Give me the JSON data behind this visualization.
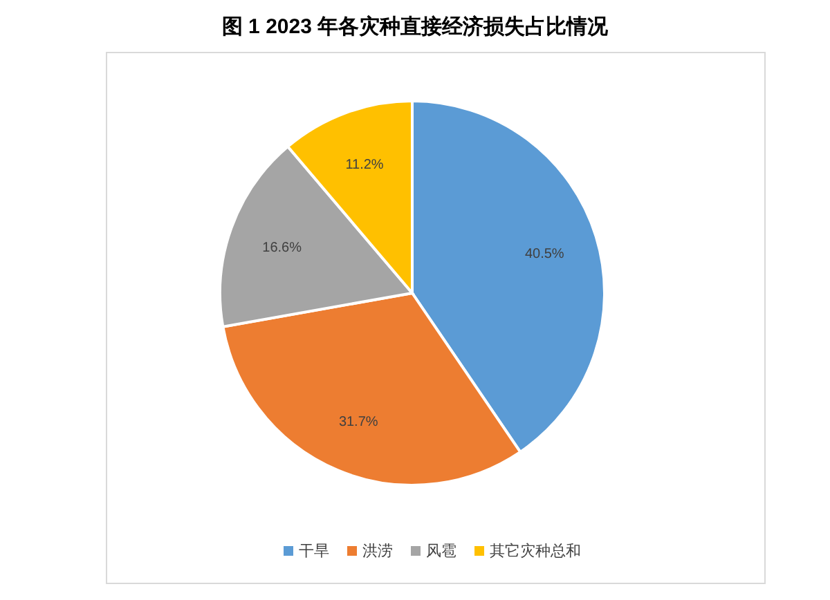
{
  "chart_data": {
    "type": "pie",
    "title": "图 1 2023 年各灾种直接经济损失占比情况",
    "categories": [
      "干旱",
      "洪涝",
      "风雹",
      "其它灾种总和"
    ],
    "values": [
      40.5,
      31.7,
      16.6,
      11.2
    ],
    "colors": [
      "#5b9bd5",
      "#ed7d31",
      "#a5a5a5",
      "#ffc000"
    ],
    "value_labels": [
      "40.5%",
      "31.7%",
      "16.6%",
      "11.2%"
    ],
    "legend": "bottom"
  }
}
